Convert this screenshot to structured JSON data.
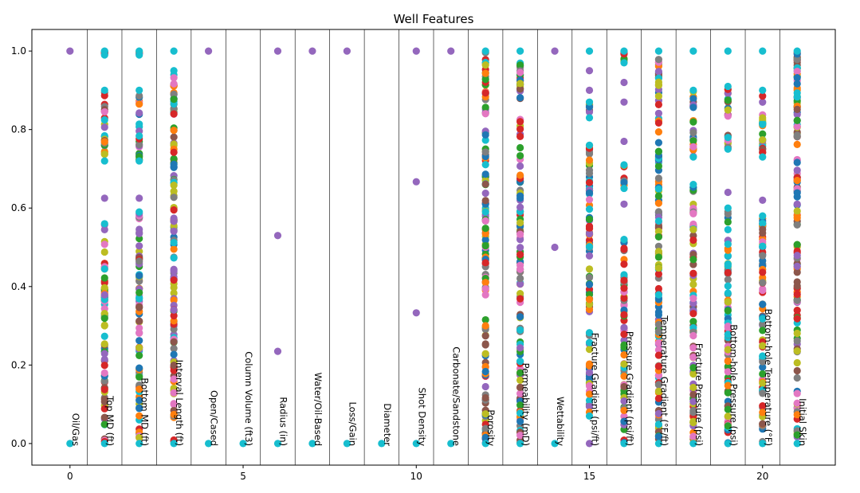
{
  "chart_data": {
    "type": "scatter",
    "title": "Well Features",
    "xlabel": "",
    "ylabel": "",
    "xlim": [
      -1.1,
      22.1
    ],
    "ylim": [
      -0.055,
      1.055
    ],
    "x_ticks": [
      0,
      5,
      10,
      15,
      20
    ],
    "y_ticks": [
      0.0,
      0.2,
      0.4,
      0.6,
      0.8,
      1.0
    ],
    "x_tick_labels": [
      "0",
      "5",
      "10",
      "15",
      "20"
    ],
    "y_tick_labels": [
      "0.0",
      "0.2",
      "0.4",
      "0.6",
      "0.8",
      "1.0"
    ],
    "grid": false,
    "legend": "none",
    "column_separators": [
      0.5,
      1.5,
      2.5,
      3.5,
      4.5,
      5.5,
      6.5,
      7.5,
      8.5,
      9.5,
      10.5,
      11.5,
      12.5,
      13.5,
      14.5,
      15.5,
      16.5,
      17.5,
      18.5,
      19.5,
      20.5
    ],
    "palette": [
      "#1f77b4",
      "#ff7f0e",
      "#2ca02c",
      "#d62728",
      "#9467bd",
      "#8c564b",
      "#e377c2",
      "#7f7f7f",
      "#bcbd22",
      "#17becf"
    ],
    "features": [
      {
        "x": 0,
        "name": "Oil/Gas",
        "kind": "discrete",
        "values": [
          0.0,
          1.0
        ]
      },
      {
        "x": 1,
        "name": "Top MD (ft)",
        "kind": "continuous",
        "clusters": [
          [
            0.0,
            0.56
          ],
          [
            0.72,
            0.9
          ],
          [
            0.99,
            1.0
          ]
        ],
        "extras": [
          0.625
        ]
      },
      {
        "x": 2,
        "name": "Bottom MD (ft)",
        "kind": "continuous",
        "clusters": [
          [
            0.0,
            0.59
          ],
          [
            0.72,
            0.9
          ],
          [
            0.99,
            1.0
          ]
        ],
        "extras": [
          0.625
        ]
      },
      {
        "x": 3,
        "name": "Interval Length (ft)",
        "kind": "continuous",
        "clusters": [
          [
            0.0,
            0.95
          ]
        ],
        "extras": [
          1.0
        ]
      },
      {
        "x": 4,
        "name": "Open/Cased",
        "kind": "discrete",
        "values": [
          0.0,
          1.0
        ]
      },
      {
        "x": 5,
        "name": "Column Volume (ft3)",
        "kind": "discrete",
        "values": [
          0.0
        ]
      },
      {
        "x": 6,
        "name": "Radius (in)",
        "kind": "discrete",
        "values": [
          0.0,
          0.235,
          0.53,
          1.0
        ]
      },
      {
        "x": 7,
        "name": "Water/Oil-Based",
        "kind": "discrete",
        "values": [
          0.0,
          1.0
        ]
      },
      {
        "x": 8,
        "name": "Loss/Gain",
        "kind": "discrete",
        "values": [
          0.0,
          1.0
        ]
      },
      {
        "x": 9,
        "name": "Diameter",
        "kind": "discrete",
        "values": [
          0.0
        ]
      },
      {
        "x": 10,
        "name": "Shot Density",
        "kind": "discrete",
        "values": [
          0.0,
          0.333,
          0.667,
          1.0
        ]
      },
      {
        "x": 11,
        "name": "Carbonate/Sandstone",
        "kind": "discrete",
        "values": [
          0.0,
          1.0
        ]
      },
      {
        "x": 12,
        "name": "Porosity",
        "kind": "continuous",
        "clusters": [
          [
            0.0,
            1.0
          ]
        ],
        "extras": []
      },
      {
        "x": 13,
        "name": "Permeability (mD)",
        "kind": "continuous",
        "clusters": [
          [
            0.0,
            1.0
          ]
        ],
        "extras": []
      },
      {
        "x": 14,
        "name": "Wettability",
        "kind": "discrete",
        "values": [
          0.0,
          0.5,
          1.0
        ]
      },
      {
        "x": 15,
        "name": "Fracture Gradient (psi/ft)",
        "kind": "continuous",
        "clusters": [
          [
            0.07,
            0.76
          ],
          [
            0.83,
            0.87
          ]
        ],
        "extras": [
          0.0,
          0.9,
          0.95,
          1.0
        ]
      },
      {
        "x": 16,
        "name": "Pressure Gradient (psi/ft)",
        "kind": "continuous",
        "clusters": [
          [
            0.0,
            0.52
          ],
          [
            0.65,
            0.71
          ],
          [
            0.97,
            1.0
          ]
        ],
        "extras": [
          0.61,
          0.77,
          0.87,
          0.92
        ]
      },
      {
        "x": 17,
        "name": "Temperature Gradient (°F/ft)",
        "kind": "continuous",
        "clusters": [
          [
            0.0,
            1.0
          ]
        ],
        "extras": []
      },
      {
        "x": 18,
        "name": "Fracture Pressure (psi)",
        "kind": "continuous",
        "clusters": [
          [
            0.0,
            0.66
          ],
          [
            0.73,
            0.9
          ]
        ],
        "extras": [
          1.0
        ]
      },
      {
        "x": 19,
        "name": "Bottom-hole Pressure (psi)",
        "kind": "continuous",
        "clusters": [
          [
            0.0,
            0.6
          ],
          [
            0.75,
            0.91
          ]
        ],
        "extras": [
          0.64,
          1.0
        ]
      },
      {
        "x": 20,
        "name": "Bottom-hole Temperature (°F)",
        "kind": "continuous",
        "clusters": [
          [
            0.0,
            0.58
          ],
          [
            0.73,
            0.9
          ]
        ],
        "extras": [
          0.62,
          1.0
        ]
      },
      {
        "x": 21,
        "name": "Initial Skin",
        "kind": "continuous",
        "clusters": [
          [
            0.0,
            1.0
          ]
        ],
        "extras": []
      }
    ]
  }
}
